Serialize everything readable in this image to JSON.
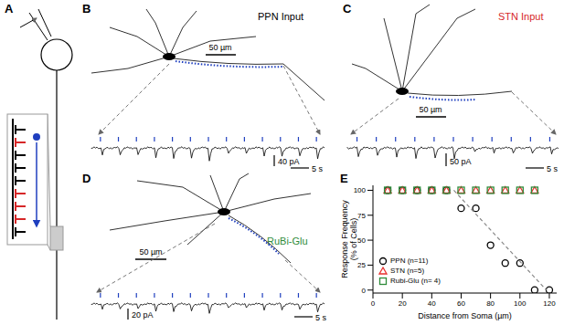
{
  "panel_labels": [
    "A",
    "B",
    "C",
    "D",
    "E"
  ],
  "recordings": [
    {
      "title": "PPN Input",
      "color": "#000000",
      "scale_bars": {
        "length": "50 µm",
        "current": "40 pA",
        "time": "5 s"
      }
    },
    {
      "title": "STN Input",
      "color": "#d62728",
      "scale_bars": {
        "length": "50 µm",
        "current": "50 pA",
        "time": "5 s"
      }
    },
    {
      "title": "RuBi-Glu",
      "color": "#2e8b3a",
      "scale_bars": {
        "length": "50 µm",
        "current": "20 pA",
        "time": "5 s"
      }
    }
  ],
  "chart_data": {
    "type": "scatter",
    "x_label": "Distance from Soma (µm)",
    "y_label": [
      "Response Frequency",
      "(% of Cells)"
    ],
    "xlim": [
      0,
      125
    ],
    "xticks": [
      0,
      20,
      40,
      60,
      80,
      100,
      120
    ],
    "ylim": [
      -3,
      105
    ],
    "yticks": [
      0,
      25,
      50,
      75,
      100
    ],
    "legend": "lower left",
    "series": [
      {
        "name": "PPN (n=11)",
        "color": "#000000",
        "marker": "circle",
        "x": [
          10,
          20,
          30,
          40,
          50,
          60,
          70,
          80,
          90,
          100,
          110,
          120
        ],
        "values": [
          100,
          100,
          100,
          100,
          100,
          82,
          82,
          45,
          27,
          27,
          0,
          0
        ]
      },
      {
        "name": "STN (n=5)",
        "color": "#e8312f",
        "marker": "triangle",
        "x": [
          10,
          20,
          30,
          40,
          50,
          60,
          70,
          80,
          90,
          100,
          110
        ],
        "values": [
          100,
          100,
          100,
          100,
          100,
          100,
          100,
          100,
          100,
          100,
          100
        ]
      },
      {
        "name": "Rubi-Glu (n= 4)",
        "color": "#2e8b3a",
        "marker": "square",
        "x": [
          10,
          20,
          30,
          40,
          50,
          60,
          70,
          80,
          90,
          100,
          110
        ],
        "values": [
          100,
          100,
          100,
          100,
          100,
          100,
          100,
          100,
          100,
          100,
          100
        ]
      },
      {
        "type": "line",
        "line_style": "dashed",
        "color": "#888888",
        "x": [
          55,
          118
        ],
        "values": [
          100,
          0
        ]
      }
    ]
  }
}
